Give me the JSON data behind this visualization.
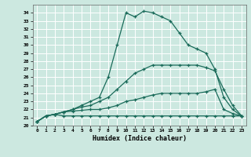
{
  "xlabel": "Humidex (Indice chaleur)",
  "bg_color": "#cce8e0",
  "grid_color": "#ffffff",
  "line_color": "#1a6b5a",
  "xlim": [
    -0.5,
    23.5
  ],
  "ylim": [
    20,
    35
  ],
  "xticks": [
    0,
    1,
    2,
    3,
    4,
    5,
    6,
    7,
    8,
    9,
    10,
    11,
    12,
    13,
    14,
    15,
    16,
    17,
    18,
    19,
    20,
    21,
    22,
    23
  ],
  "yticks": [
    20,
    21,
    22,
    23,
    24,
    25,
    26,
    27,
    28,
    29,
    30,
    31,
    32,
    33,
    34
  ],
  "series": [
    [
      20.5,
      21.2,
      21.4,
      21.2,
      21.2,
      21.2,
      21.2,
      21.2,
      21.2,
      21.2,
      21.2,
      21.2,
      21.2,
      21.2,
      21.2,
      21.2,
      21.2,
      21.2,
      21.2,
      21.2,
      21.2,
      21.2,
      21.2,
      21.2
    ],
    [
      20.5,
      21.2,
      21.4,
      21.7,
      21.8,
      21.9,
      22.0,
      22.0,
      22.2,
      22.5,
      23.0,
      23.2,
      23.5,
      23.8,
      24.0,
      24.0,
      24.0,
      24.0,
      24.0,
      24.2,
      24.5,
      22.0,
      21.5,
      21.2
    ],
    [
      20.5,
      21.2,
      21.4,
      21.7,
      22.0,
      22.3,
      22.5,
      23.0,
      23.5,
      24.5,
      25.5,
      26.5,
      27.0,
      27.5,
      27.5,
      27.5,
      27.5,
      27.5,
      27.5,
      27.2,
      26.8,
      24.5,
      22.5,
      21.2
    ],
    [
      20.5,
      21.2,
      21.4,
      21.7,
      22.0,
      22.5,
      23.0,
      23.5,
      26.0,
      30.0,
      34.0,
      33.5,
      34.2,
      34.0,
      33.5,
      33.0,
      31.5,
      30.0,
      29.5,
      29.0,
      27.0,
      23.5,
      22.0,
      21.2
    ]
  ]
}
